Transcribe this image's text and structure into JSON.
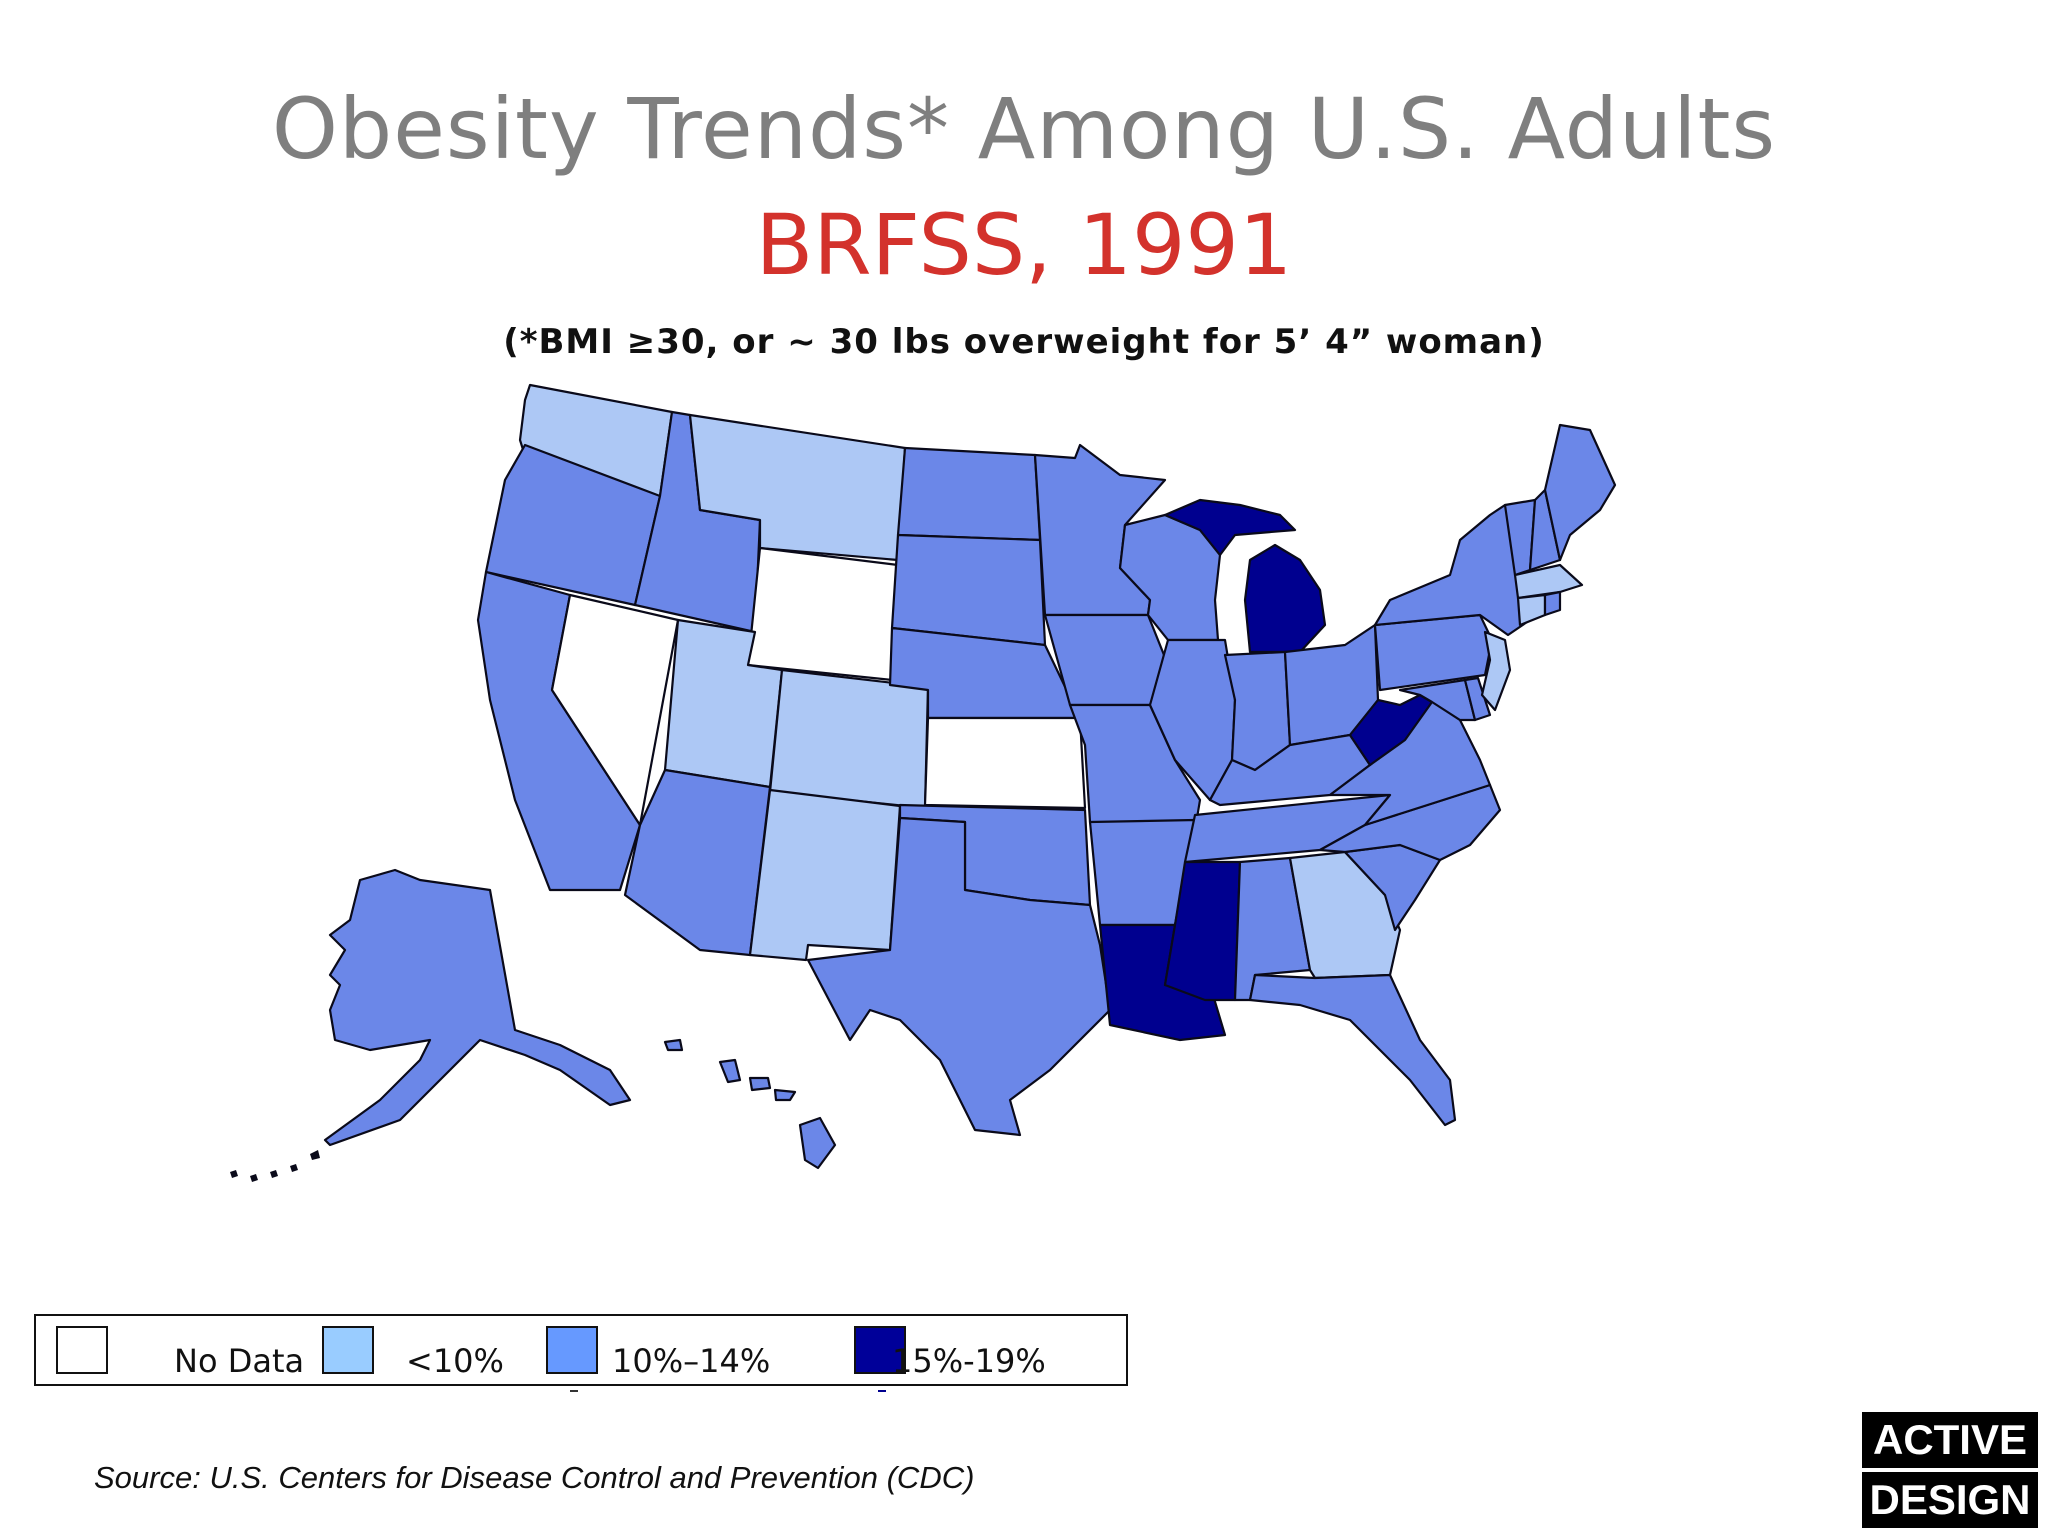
{
  "title": "Obesity Trends* Among U.S. Adults",
  "subtitle": "BRFSS, 1991",
  "note": "(*BMI ≥30, or ~ 30 lbs overweight for 5’ 4” woman)",
  "legend": {
    "items": [
      {
        "label": "No Data",
        "color": "#ffffff"
      },
      {
        "label": "<10%",
        "color": "#99ccff"
      },
      {
        "label": "10%–14%",
        "color": "#6699ff"
      },
      {
        "label": "15%-19%",
        "color": "#000099"
      }
    ]
  },
  "colors": {
    "no_data": "#ffffff",
    "lt10": "#adc8f5",
    "c10_14": "#6b87e8",
    "c15_19": "#00008f"
  },
  "state_categories": {
    "lt10": [
      "WA",
      "MT",
      "UT",
      "CO",
      "NM",
      "GA",
      "MA",
      "NJ",
      "CT"
    ],
    "no_data": [
      "WY",
      "NV",
      "KS"
    ],
    "c15_19": [
      "MI",
      "WV",
      "MS",
      "LA"
    ],
    "c10_14": [
      "OR",
      "ID",
      "CA",
      "AZ",
      "ND",
      "SD",
      "NE",
      "OK",
      "TX",
      "MN",
      "IA",
      "MO",
      "AR",
      "WI",
      "IL",
      "IN",
      "OH",
      "KY",
      "TN",
      "AL",
      "FL",
      "SC",
      "NC",
      "VA",
      "MD",
      "DE",
      "PA",
      "NY",
      "VT",
      "NH",
      "ME",
      "RI",
      "AK",
      "HI"
    ]
  },
  "source": "Source: U.S. Centers for Disease Control and Prevention (CDC)",
  "brand": {
    "line1": "ACTIVE",
    "line2": "DESIGN"
  }
}
